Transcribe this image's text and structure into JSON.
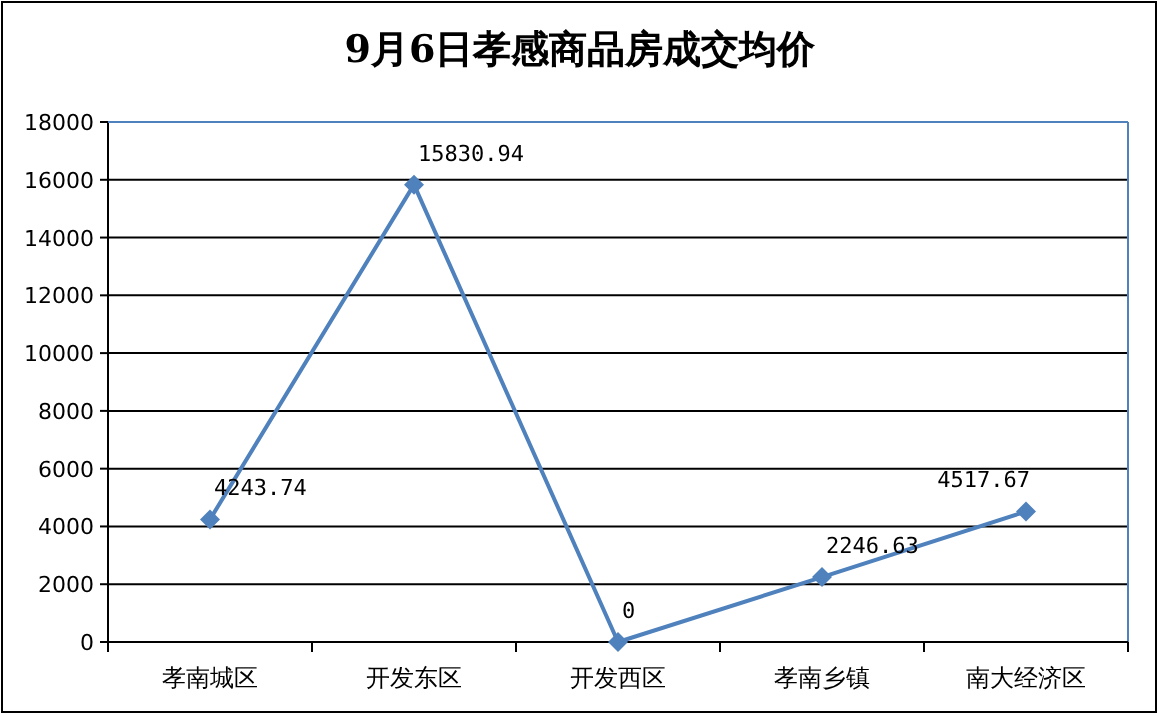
{
  "chart_data": {
    "type": "line",
    "title": "9月6日孝感商品房成交均价",
    "categories": [
      "孝南城区",
      "开发东区",
      "开发西区",
      "孝南乡镇",
      "南大经济区"
    ],
    "values": [
      4243.74,
      15830.94,
      0,
      2246.63,
      4517.67
    ],
    "color": "#4f81bd",
    "ylim": [
      0,
      18000
    ],
    "yticks": [
      0,
      2000,
      4000,
      6000,
      8000,
      10000,
      12000,
      14000,
      16000,
      18000
    ],
    "grid": "y",
    "marker": "diamond",
    "line_style": "solid",
    "data_labels": true,
    "legend": false
  }
}
